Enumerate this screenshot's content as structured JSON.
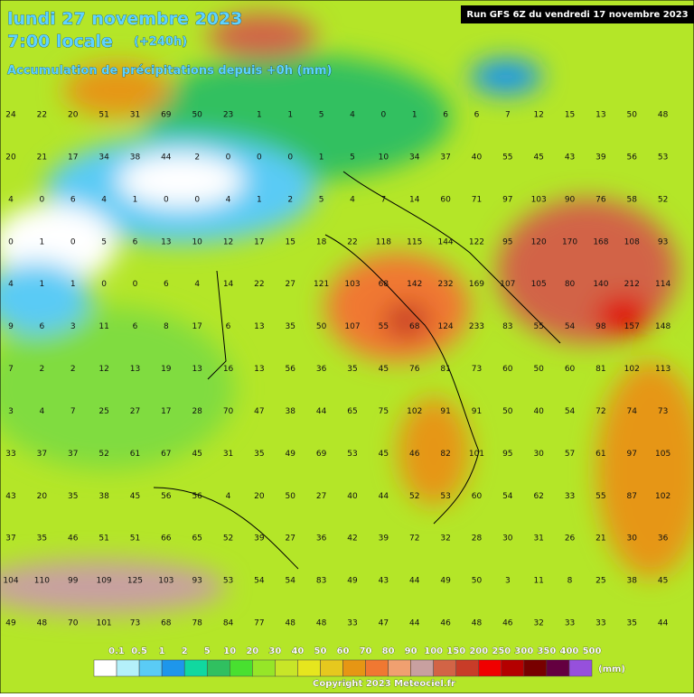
{
  "header": {
    "date": "lundi 27 novembre 2023",
    "time": "7:00 locale",
    "lead": "(+240h)",
    "subtitle": "Accumulation de précipitations depuis +0h (mm)",
    "run": "Run GFS 6Z du vendredi 17 novembre 2023"
  },
  "grid": {
    "rows": [
      [
        24,
        22,
        20,
        51,
        31,
        69,
        50,
        23,
        1,
        1,
        5,
        4,
        0,
        1,
        6,
        6,
        7,
        12,
        15,
        13,
        50,
        48
      ],
      [
        20,
        21,
        17,
        34,
        38,
        44,
        2,
        0,
        0,
        0,
        1,
        5,
        10,
        34,
        37,
        40,
        55,
        45,
        43,
        39,
        56,
        53
      ],
      [
        4,
        0,
        6,
        4,
        1,
        0,
        0,
        4,
        1,
        2,
        5,
        4,
        7,
        14,
        60,
        71,
        97,
        103,
        90,
        76,
        58,
        52
      ],
      [
        0,
        1,
        0,
        5,
        6,
        13,
        10,
        12,
        17,
        15,
        18,
        22,
        118,
        115,
        144,
        122,
        95,
        120,
        170,
        168,
        108,
        93
      ],
      [
        4,
        1,
        1,
        0,
        0,
        6,
        4,
        14,
        22,
        27,
        121,
        103,
        68,
        142,
        232,
        169,
        107,
        105,
        80,
        140,
        212,
        114
      ],
      [
        9,
        6,
        3,
        11,
        6,
        8,
        17,
        6,
        13,
        35,
        50,
        107,
        55,
        68,
        124,
        233,
        83,
        55,
        54,
        98,
        157,
        148
      ],
      [
        7,
        2,
        2,
        12,
        13,
        19,
        13,
        16,
        13,
        56,
        36,
        35,
        45,
        76,
        81,
        73,
        60,
        50,
        60,
        81,
        102,
        113
      ],
      [
        3,
        4,
        7,
        25,
        27,
        17,
        28,
        70,
        47,
        38,
        44,
        65,
        75,
        102,
        91,
        91,
        50,
        40,
        54,
        72,
        74,
        73
      ],
      [
        33,
        37,
        37,
        52,
        61,
        67,
        45,
        31,
        35,
        49,
        69,
        53,
        45,
        46,
        82,
        101,
        95,
        30,
        57,
        61,
        97,
        105
      ],
      [
        43,
        20,
        35,
        38,
        45,
        56,
        56,
        4,
        20,
        50,
        27,
        40,
        44,
        52,
        53,
        60,
        54,
        62,
        33,
        55,
        87,
        102
      ],
      [
        37,
        35,
        46,
        51,
        51,
        66,
        65,
        52,
        39,
        27,
        36,
        42,
        39,
        72,
        32,
        28,
        30,
        31,
        26,
        21,
        30,
        36
      ],
      [
        104,
        110,
        99,
        109,
        125,
        103,
        93,
        53,
        54,
        54,
        83,
        49,
        43,
        44,
        49,
        50,
        3,
        11,
        8,
        25,
        38,
        45
      ],
      [
        49,
        48,
        70,
        101,
        73,
        68,
        78,
        84,
        77,
        48,
        48,
        33,
        47,
        44,
        46,
        48,
        46,
        32,
        33,
        33,
        35,
        44
      ]
    ]
  },
  "legend": {
    "labels": [
      "0.1",
      "0.5",
      "1",
      "2",
      "5",
      "10",
      "20",
      "30",
      "40",
      "50",
      "60",
      "70",
      "80",
      "90",
      "100",
      "150",
      "200",
      "250",
      "300",
      "350",
      "400",
      "500"
    ],
    "colors": [
      "#ffffff",
      "#b4f0fa",
      "#5acbf5",
      "#1e96eb",
      "#10d8a0",
      "#30c060",
      "#48e030",
      "#96e628",
      "#c8e628",
      "#e6e61e",
      "#e6c81e",
      "#e69614",
      "#f07832",
      "#f0a070",
      "#c8a0a0",
      "#d26446",
      "#c83c28",
      "#f00000",
      "#b40000",
      "#780000",
      "#640040",
      "#9650dc"
    ],
    "unit": "(mm)"
  },
  "footer": {
    "copyright": "Copyright 2023 Meteociel.fr"
  }
}
